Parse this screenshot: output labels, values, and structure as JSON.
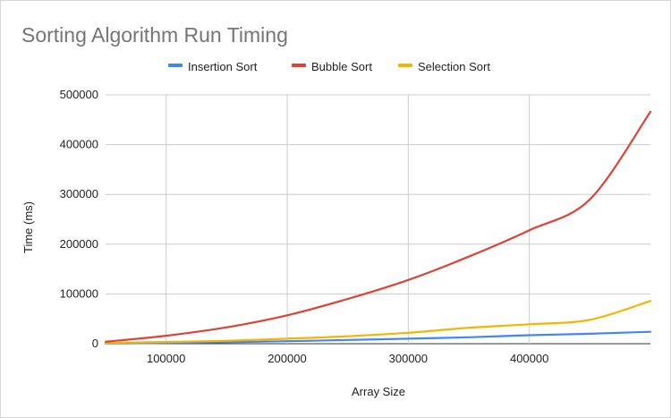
{
  "chart_data": {
    "type": "line",
    "title": "Sorting Algorithm Run Timing",
    "xlabel": "Array Size",
    "ylabel": "Time (ms)",
    "xlim": [
      50000,
      500000
    ],
    "ylim": [
      0,
      500000
    ],
    "xticks": [
      100000,
      200000,
      300000,
      400000
    ],
    "yticks": [
      0,
      100000,
      200000,
      300000,
      400000,
      500000
    ],
    "grid": true,
    "legend": "top",
    "x": [
      50000,
      100000,
      150000,
      200000,
      250000,
      300000,
      350000,
      400000,
      450000,
      500000
    ],
    "series": [
      {
        "name": "Insertion Sort",
        "color": "#4285F4",
        "values": [
          500,
          1500,
          3000,
          5000,
          7500,
          10000,
          13000,
          17000,
          20000,
          24000
        ]
      },
      {
        "name": "Bubble Sort",
        "color": "#DB4437",
        "values": [
          4000,
          16000,
          33000,
          57000,
          90000,
          128000,
          175000,
          228000,
          290000,
          466000
        ]
      },
      {
        "name": "Selection Sort",
        "color": "#F4B400",
        "values": [
          1500,
          3500,
          6000,
          10000,
          15000,
          22000,
          32000,
          39000,
          48000,
          86000
        ]
      }
    ]
  }
}
